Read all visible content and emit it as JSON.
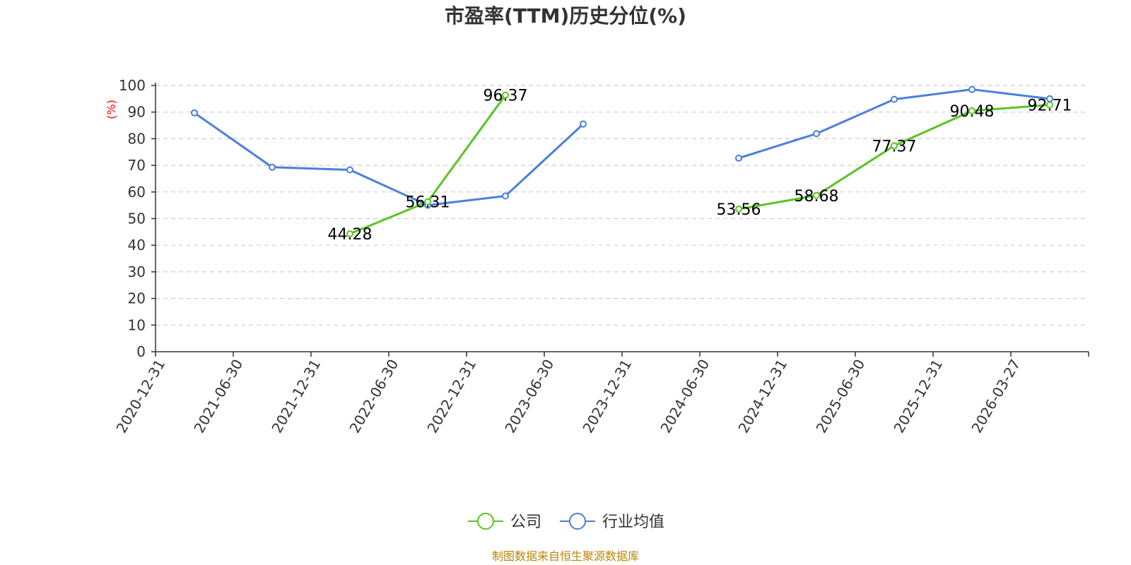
{
  "chart_data": {
    "type": "line",
    "title": "市盈率(TTM)历史分位(%)",
    "ylabel": "(%)",
    "ylim": [
      0,
      100
    ],
    "yticks": [
      0,
      10,
      20,
      30,
      40,
      50,
      60,
      70,
      80,
      90,
      100
    ],
    "grid": true,
    "legend_placement": "bottom-center",
    "categories": [
      "2020-12-31",
      "2021-06-30",
      "2021-12-31",
      "2022-06-30",
      "2022-12-31",
      "2023-06-30",
      "2023-12-31",
      "2024-06-30",
      "2024-12-31",
      "2025-06-30",
      "2025-12-31",
      "2026-03-27"
    ],
    "series": [
      {
        "name": "公司",
        "color": "#5ac425",
        "values": [
          null,
          null,
          44.28,
          56.31,
          96.37,
          null,
          null,
          53.56,
          58.68,
          77.37,
          90.48,
          92.71
        ],
        "labels": [
          null,
          null,
          "44.28",
          "56.31",
          "96.37",
          null,
          null,
          "53.56",
          "58.68",
          "77.37",
          "90.48",
          "92.71"
        ]
      },
      {
        "name": "行业均值",
        "color": "#4a7fdc",
        "values": [
          89.7,
          69.3,
          68.3,
          55.0,
          58.5,
          85.5,
          null,
          72.7,
          81.9,
          94.8,
          98.5,
          95.0
        ],
        "labels": [
          null,
          null,
          null,
          null,
          null,
          null,
          null,
          null,
          null,
          null,
          null,
          null
        ]
      }
    ],
    "source": "制图数据来自恒生聚源数据库"
  }
}
